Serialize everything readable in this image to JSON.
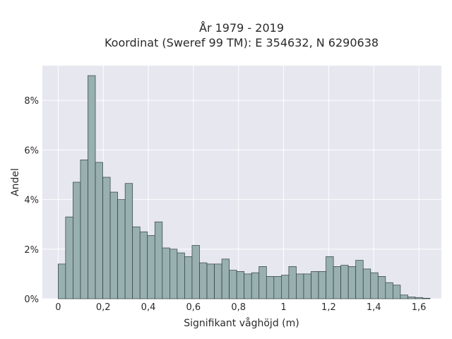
{
  "chart_data": {
    "type": "bar",
    "title_line1": "År 1979 - 2019",
    "title_line2": "Koordinat (Sweref 99 TM): E 354632, N 6290638",
    "xlabel": "Signifikant våghöjd (m)",
    "ylabel": "Andel",
    "xlim": [
      -0.07,
      1.7
    ],
    "ylim": [
      0,
      9.4
    ],
    "x_ticks": [
      {
        "value": 0,
        "label": "0"
      },
      {
        "value": 0.2,
        "label": "0,2"
      },
      {
        "value": 0.4,
        "label": "0,4"
      },
      {
        "value": 0.6,
        "label": "0,6"
      },
      {
        "value": 0.8,
        "label": "0,8"
      },
      {
        "value": 1.0,
        "label": "1"
      },
      {
        "value": 1.2,
        "label": "1,2"
      },
      {
        "value": 1.4,
        "label": "1,4"
      },
      {
        "value": 1.6,
        "label": "1,6"
      }
    ],
    "y_ticks": [
      {
        "value": 0,
        "label": "0%"
      },
      {
        "value": 2,
        "label": "2%"
      },
      {
        "value": 4,
        "label": "4%"
      },
      {
        "value": 6,
        "label": "6%"
      },
      {
        "value": 8,
        "label": "8%"
      }
    ],
    "bin_width": 0.033,
    "bin_start": 0.0,
    "values": [
      1.4,
      3.3,
      4.7,
      5.6,
      9.0,
      5.5,
      4.9,
      4.3,
      4.0,
      4.65,
      2.9,
      2.7,
      2.55,
      3.1,
      2.05,
      2.0,
      1.85,
      1.7,
      2.15,
      1.45,
      1.4,
      1.4,
      1.6,
      1.15,
      1.1,
      1.0,
      1.05,
      1.3,
      0.9,
      0.9,
      0.95,
      1.3,
      1.0,
      1.0,
      1.1,
      1.1,
      1.7,
      1.3,
      1.35,
      1.3,
      1.55,
      1.2,
      1.05,
      0.9,
      0.65,
      0.55,
      0.15,
      0.07,
      0.05,
      0.02
    ],
    "grid": true,
    "colors": {
      "plot_bg": "#e6e7ef",
      "grid": "#ffffff",
      "bar_fill": "#98b0af",
      "bar_edge": "#2f3e3d"
    }
  }
}
